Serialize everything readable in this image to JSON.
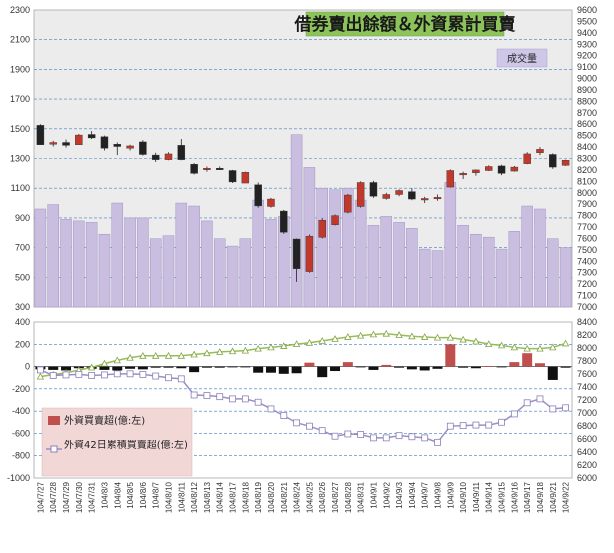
{
  "title": "借券賣出餘額＆外資累計買賣",
  "volume_label": "成交量",
  "colors": {
    "up_candle": "#c0392b",
    "down_candle": "#222222",
    "volume_bar": "#c9bde0",
    "foreign_bar_pos": "#c0504d",
    "foreign_bar_neg": "#111111",
    "cum_line": "#9b8fc7",
    "index_line": "#9bbb59",
    "title_bg": "#8dc35b",
    "label_bg": "#cfc7e8",
    "legend_bg": "#f2d7d7"
  },
  "chart_data": [
    {
      "type": "candlestick+bar",
      "name": "top",
      "categories": [
        "104/7/27",
        "104/7/28",
        "104/7/29",
        "104/7/30",
        "104/7/31",
        "104/8/3",
        "104/8/4",
        "104/8/5",
        "104/8/6",
        "104/8/7",
        "104/8/10",
        "104/8/11",
        "104/8/12",
        "104/8/13",
        "104/8/14",
        "104/8/17",
        "104/8/18",
        "104/8/19",
        "104/8/20",
        "104/8/21",
        "104/8/24",
        "104/8/25",
        "104/8/26",
        "104/8/27",
        "104/8/28",
        "104/8/31",
        "104/9/1",
        "104/9/2",
        "104/9/3",
        "104/9/4",
        "104/9/7",
        "104/9/8",
        "104/9/9",
        "104/9/10",
        "104/9/11",
        "104/9/14",
        "104/9/15",
        "104/9/16",
        "104/9/17",
        "104/9/18",
        "104/9/21",
        "104/9/22"
      ],
      "left_axis_ticks": [
        "300",
        "500",
        "700",
        "900",
        "1100",
        "1300",
        "1500",
        "1700",
        "1900",
        "2100",
        "2300"
      ],
      "left_ylim": [
        300,
        2300
      ],
      "right_axis_ticks": [
        "7000",
        "7100",
        "7200",
        "7300",
        "7400",
        "7500",
        "7600",
        "7700",
        "7800",
        "7900",
        "8000",
        "8100",
        "8200",
        "8300",
        "8400",
        "8500",
        "8600",
        "8700",
        "8800",
        "8900",
        "9000",
        "9100",
        "9200",
        "9300",
        "9400",
        "9500",
        "9600"
      ],
      "right_ylim": [
        7000,
        9600
      ],
      "volume": [
        960,
        990,
        890,
        880,
        870,
        790,
        1000,
        900,
        900,
        760,
        780,
        1000,
        980,
        880,
        760,
        710,
        760,
        1020,
        890,
        910,
        1460,
        1240,
        1100,
        1090,
        1100,
        1020,
        850,
        910,
        870,
        830,
        690,
        680,
        1140,
        850,
        790,
        770,
        690,
        810,
        980,
        960,
        760,
        700
      ],
      "ohlc": [
        {
          "o": 8590,
          "h": 8600,
          "l": 8420,
          "c": 8420
        },
        {
          "o": 8425,
          "h": 8455,
          "l": 8405,
          "c": 8440
        },
        {
          "o": 8440,
          "h": 8465,
          "l": 8395,
          "c": 8415
        },
        {
          "o": 8420,
          "h": 8515,
          "l": 8420,
          "c": 8505
        },
        {
          "o": 8510,
          "h": 8540,
          "l": 8470,
          "c": 8480
        },
        {
          "o": 8490,
          "h": 8500,
          "l": 8370,
          "c": 8390
        },
        {
          "o": 8425,
          "h": 8440,
          "l": 8330,
          "c": 8405
        },
        {
          "o": 8390,
          "h": 8420,
          "l": 8370,
          "c": 8410
        },
        {
          "o": 8445,
          "h": 8460,
          "l": 8325,
          "c": 8335
        },
        {
          "o": 8330,
          "h": 8350,
          "l": 8270,
          "c": 8290
        },
        {
          "o": 8290,
          "h": 8355,
          "l": 8285,
          "c": 8340
        },
        {
          "o": 8415,
          "h": 8470,
          "l": 8285,
          "c": 8290
        },
        {
          "o": 8250,
          "h": 8260,
          "l": 8160,
          "c": 8170
        },
        {
          "o": 8205,
          "h": 8230,
          "l": 8185,
          "c": 8215
        },
        {
          "o": 8215,
          "h": 8230,
          "l": 8200,
          "c": 8210
        },
        {
          "o": 8195,
          "h": 8200,
          "l": 8085,
          "c": 8095
        },
        {
          "o": 8085,
          "h": 8185,
          "l": 8085,
          "c": 8180
        },
        {
          "o": 8070,
          "h": 8090,
          "l": 7870,
          "c": 7885
        },
        {
          "o": 7880,
          "h": 7955,
          "l": 7870,
          "c": 7945
        },
        {
          "o": 7840,
          "h": 7850,
          "l": 7640,
          "c": 7655
        },
        {
          "o": 7595,
          "h": 7600,
          "l": 7220,
          "c": 7335
        },
        {
          "o": 7310,
          "h": 7635,
          "l": 7300,
          "c": 7620
        },
        {
          "o": 7610,
          "h": 7780,
          "l": 7600,
          "c": 7760
        },
        {
          "o": 7720,
          "h": 7810,
          "l": 7715,
          "c": 7800
        },
        {
          "o": 7830,
          "h": 7990,
          "l": 7820,
          "c": 7980
        },
        {
          "o": 7880,
          "h": 8100,
          "l": 7870,
          "c": 8090
        },
        {
          "o": 8090,
          "h": 8105,
          "l": 7955,
          "c": 7970
        },
        {
          "o": 7950,
          "h": 8000,
          "l": 7940,
          "c": 7985
        },
        {
          "o": 7985,
          "h": 8030,
          "l": 7970,
          "c": 8020
        },
        {
          "o": 8010,
          "h": 8040,
          "l": 7935,
          "c": 7945
        },
        {
          "o": 7945,
          "h": 7965,
          "l": 7910,
          "c": 7950
        },
        {
          "o": 7950,
          "h": 7985,
          "l": 7930,
          "c": 7960
        },
        {
          "o": 8050,
          "h": 8205,
          "l": 8045,
          "c": 8195
        },
        {
          "o": 8160,
          "h": 8185,
          "l": 8120,
          "c": 8170
        },
        {
          "o": 8175,
          "h": 8205,
          "l": 8150,
          "c": 8200
        },
        {
          "o": 8195,
          "h": 8240,
          "l": 8190,
          "c": 8230
        },
        {
          "o": 8235,
          "h": 8245,
          "l": 8155,
          "c": 8170
        },
        {
          "o": 8190,
          "h": 8235,
          "l": 8185,
          "c": 8225
        },
        {
          "o": 8255,
          "h": 8355,
          "l": 8250,
          "c": 8340
        },
        {
          "o": 8350,
          "h": 8400,
          "l": 8330,
          "c": 8380
        },
        {
          "o": 8335,
          "h": 8345,
          "l": 8210,
          "c": 8225
        },
        {
          "o": 8240,
          "h": 8290,
          "l": 8235,
          "c": 8285
        }
      ]
    },
    {
      "type": "bar+line",
      "name": "bottom",
      "left_axis_ticks": [
        "-1000",
        "-800",
        "-600",
        "-400",
        "-200",
        "0",
        "200",
        "400"
      ],
      "left_ylim": [
        -1000,
        400
      ],
      "right_axis_ticks": [
        "6000",
        "6200",
        "6400",
        "6600",
        "6800",
        "7000",
        "7200",
        "7400",
        "7600",
        "7800",
        "8000",
        "8200",
        "8400"
      ],
      "right_ylim": [
        6000,
        8400
      ],
      "legend": [
        {
          "label": "外資買賣超(億:左)"
        },
        {
          "label": "外資42日累積買賣超(億:左)"
        }
      ],
      "series": [
        {
          "name": "外資買賣超(億:左)",
          "type": "bar",
          "values": [
            -25,
            -30,
            -35,
            -15,
            -20,
            -30,
            -35,
            -20,
            -25,
            -10,
            -10,
            -15,
            -50,
            -10,
            -10,
            -5,
            -5,
            -55,
            -55,
            -65,
            -60,
            35,
            -95,
            -40,
            40,
            -5,
            -30,
            15,
            -10,
            -25,
            -35,
            -20,
            200,
            -10,
            -15,
            5,
            -5,
            40,
            120,
            30,
            -120,
            -10
          ]
        },
        {
          "name": "外資42日累積買賣超(億:左)",
          "type": "line",
          "values": [
            -30,
            -80,
            -75,
            -70,
            -80,
            -75,
            -65,
            -65,
            -70,
            -85,
            -100,
            -110,
            -255,
            -260,
            -270,
            -290,
            -290,
            -320,
            -380,
            -440,
            -505,
            -535,
            -575,
            -625,
            -605,
            -610,
            -640,
            -640,
            -620,
            -630,
            -640,
            -680,
            -535,
            -530,
            -525,
            -525,
            -500,
            -425,
            -325,
            -290,
            -380,
            -370
          ]
        },
        {
          "name": "index",
          "type": "line",
          "values": [
            7560,
            7590,
            7620,
            7660,
            7700,
            7760,
            7810,
            7850,
            7880,
            7880,
            7880,
            7880,
            7900,
            7920,
            7940,
            7950,
            7960,
            7990,
            8010,
            8030,
            8060,
            8080,
            8110,
            8140,
            8170,
            8190,
            8210,
            8220,
            8200,
            8180,
            8170,
            8160,
            8160,
            8130,
            8100,
            8060,
            8040,
            8010,
            7990,
            7990,
            8010,
            8070
          ]
        }
      ]
    }
  ]
}
